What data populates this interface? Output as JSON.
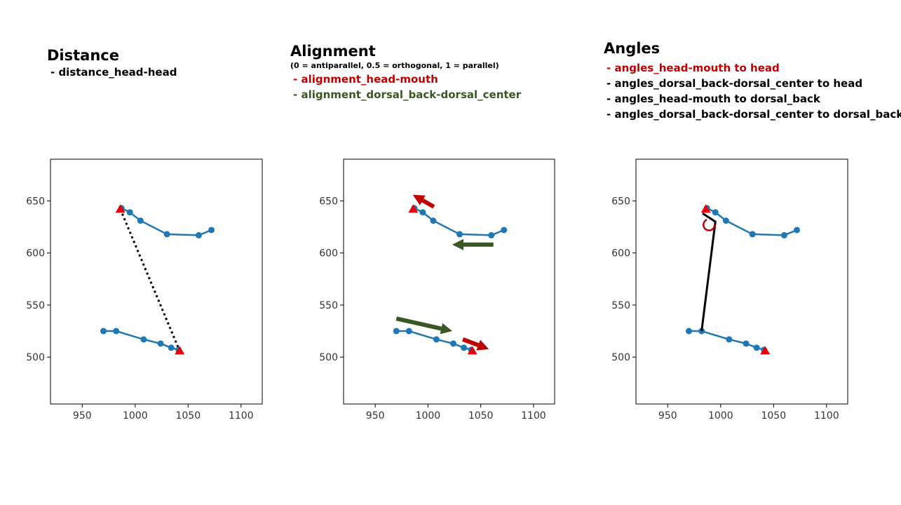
{
  "colors": {
    "series": "#1f77b4",
    "marker": "#e8000b",
    "highlight_red": "#c00000",
    "highlight_green": "#385723",
    "text": "#000000",
    "connector": "#000000"
  },
  "panels": [
    {
      "title": "Distance",
      "note": "",
      "items": [
        {
          "text": "- distance_head-head",
          "color": "#000000"
        }
      ]
    },
    {
      "title": "Alignment",
      "note": "(0 = antiparallel, 0.5 = orthogonal, 1 = parallel)",
      "items": [
        {
          "text": "- alignment_head-mouth",
          "color": "#c00000"
        },
        {
          "text": "- alignment_dorsal_back-dorsal_center",
          "color": "#385723"
        }
      ]
    },
    {
      "title": "Angles",
      "note": "",
      "items": [
        {
          "text": "- angles_head-mouth to head",
          "color": "#c00000"
        },
        {
          "text": "- angles_dorsal_back-dorsal_center to head",
          "color": "#000000"
        },
        {
          "text": "- angles_head-mouth to dorsal_back",
          "color": "#000000"
        },
        {
          "text": "- angles_dorsal_back-dorsal_center to dorsal_back",
          "color": "#000000"
        }
      ]
    }
  ],
  "chart_data": [
    {
      "type": "line",
      "title": "",
      "xlabel": "",
      "ylabel": "",
      "xlim": [
        920,
        1120
      ],
      "ylim": [
        455,
        690
      ],
      "xticks": [
        "950",
        "1000",
        "1050",
        "1100"
      ],
      "yticks": [
        "500",
        "550",
        "600",
        "650"
      ],
      "grid": false,
      "series": [
        {
          "x": [
            987,
            995,
            1005,
            1030,
            1060,
            1072
          ],
          "y": [
            643,
            639,
            631,
            618,
            617,
            622
          ]
        },
        {
          "x": [
            970,
            982,
            1008,
            1024,
            1034,
            1041
          ],
          "y": [
            525,
            525,
            517,
            513,
            509,
            507
          ]
        }
      ],
      "heads": [
        {
          "x": 986,
          "y": 642
        },
        {
          "x": 1042,
          "y": 506
        }
      ],
      "overlay": "distance"
    },
    {
      "type": "line",
      "title": "",
      "xlabel": "",
      "ylabel": "",
      "xlim": [
        920,
        1120
      ],
      "ylim": [
        455,
        690
      ],
      "xticks": [
        "950",
        "1000",
        "1050",
        "1100"
      ],
      "yticks": [
        "500",
        "550",
        "600",
        "650"
      ],
      "grid": false,
      "series": [
        {
          "x": [
            987,
            995,
            1005,
            1030,
            1060,
            1072
          ],
          "y": [
            643,
            639,
            631,
            618,
            617,
            622
          ]
        },
        {
          "x": [
            970,
            982,
            1008,
            1024,
            1034,
            1041
          ],
          "y": [
            525,
            525,
            517,
            513,
            509,
            507
          ]
        }
      ],
      "heads": [
        {
          "x": 986,
          "y": 642
        },
        {
          "x": 1042,
          "y": 506
        }
      ],
      "overlay": "alignment"
    },
    {
      "type": "line",
      "title": "",
      "xlabel": "",
      "ylabel": "",
      "xlim": [
        920,
        1120
      ],
      "ylim": [
        455,
        690
      ],
      "xticks": [
        "950",
        "1000",
        "1050",
        "1100"
      ],
      "yticks": [
        "500",
        "550",
        "600",
        "650"
      ],
      "grid": false,
      "series": [
        {
          "x": [
            987,
            995,
            1005,
            1030,
            1060,
            1072
          ],
          "y": [
            643,
            639,
            631,
            618,
            617,
            622
          ]
        },
        {
          "x": [
            970,
            982,
            1008,
            1024,
            1034,
            1041
          ],
          "y": [
            525,
            525,
            517,
            513,
            509,
            507
          ]
        }
      ],
      "heads": [
        {
          "x": 986,
          "y": 642
        },
        {
          "x": 1042,
          "y": 506
        }
      ],
      "overlay": "angles"
    }
  ]
}
